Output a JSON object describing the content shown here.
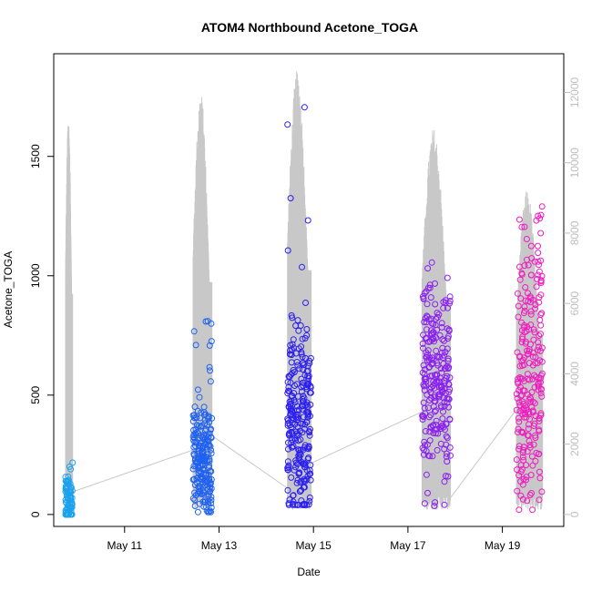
{
  "chart_data": {
    "type": "scatter",
    "title": "ATOM4 Northbound Acetone_TOGA",
    "xlabel": "Date",
    "ylabel": "Acetone_TOGA",
    "x_ticks": [
      "May 11",
      "May 13",
      "May 15",
      "May 17",
      "May 19"
    ],
    "x_range_days": [
      9.5,
      20.3
    ],
    "x_tick_days": [
      11,
      13,
      15,
      17,
      19
    ],
    "ylim": [
      -50,
      1930
    ],
    "y_ticks": [
      0,
      500,
      1000,
      1500
    ],
    "y2lim": [
      -340,
      13100
    ],
    "y2_ticks": [
      0,
      2000,
      4000,
      6000,
      8000,
      10000,
      12000
    ],
    "right_axis_color": "#bdbdbd",
    "flights": [
      {
        "day_start": 9.75,
        "day_end": 9.9,
        "color": "#1ca2ee",
        "y_center": 60,
        "y_spread": 70,
        "y_min": 0,
        "y_max": 240,
        "n_points": 90,
        "profile_peaks": [
          1680,
          1460,
          850
        ],
        "profile_max": 1680
      },
      {
        "day_start": 12.45,
        "day_end": 12.85,
        "color": "#1f62f0",
        "y_center": 220,
        "y_spread": 110,
        "y_min": 10,
        "y_max": 820,
        "n_points": 220,
        "profile_peaks": [
          1770,
          1600,
          1240
        ],
        "profile_max": 1770
      },
      {
        "day_start": 14.45,
        "day_end": 14.95,
        "color": "#2b1ff0",
        "y_center": 390,
        "y_spread": 220,
        "y_min": 40,
        "y_max": 1860,
        "n_points": 260,
        "profile_peaks": [
          1810,
          1590,
          1360
        ],
        "profile_max": 1860
      },
      {
        "day_start": 17.3,
        "day_end": 17.9,
        "color": "#8a1ff0",
        "y_center": 580,
        "y_spread": 210,
        "y_min": 0,
        "y_max": 1060,
        "n_points": 240,
        "profile_peaks": [
          1620,
          1280,
          1200
        ],
        "profile_max": 1620
      },
      {
        "day_start": 19.3,
        "day_end": 19.85,
        "color": "#ee1cc0",
        "y_center": 620,
        "y_spread": 300,
        "y_min": 20,
        "y_max": 1290,
        "n_points": 240,
        "profile_peaks": [
          1360,
          1290,
          1240
        ],
        "profile_max": 1360
      }
    ],
    "transit_line": {
      "color": "#c8c8c8",
      "points": [
        [
          9.9,
          95
        ],
        [
          12.45,
          270
        ],
        [
          12.85,
          330
        ],
        [
          14.45,
          110
        ],
        [
          14.95,
          215
        ],
        [
          17.3,
          430
        ],
        [
          17.9,
          70
        ],
        [
          19.3,
          440
        ]
      ]
    }
  }
}
